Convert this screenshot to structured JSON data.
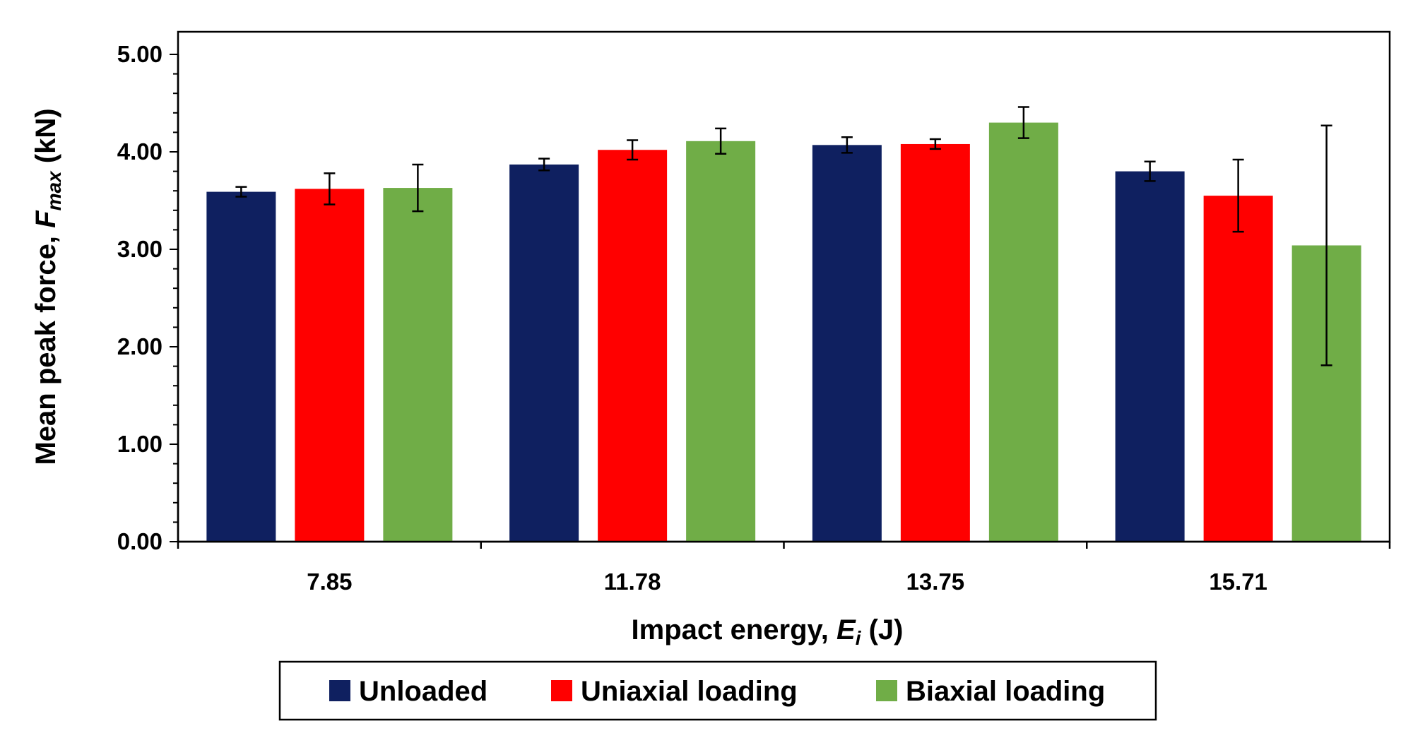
{
  "chart_data": {
    "type": "bar",
    "title": "",
    "xlabel": {
      "prefix": "Impact energy, ",
      "symbol": "E",
      "subscript": "i",
      "suffix": " (J)"
    },
    "ylabel": {
      "prefix": "Mean peak force, ",
      "symbol": "F",
      "subscript": "max",
      "suffix": " (kN)"
    },
    "categories": [
      "7.85",
      "11.78",
      "13.75",
      "15.71"
    ],
    "ylim": [
      0,
      5
    ],
    "yticks": [
      "0.00",
      "1.00",
      "2.00",
      "3.00",
      "4.00",
      "5.00"
    ],
    "grid": false,
    "legend_position": "bottom-center",
    "series": [
      {
        "name": "Unloaded",
        "color": "#0f2060",
        "values": [
          3.59,
          3.87,
          4.07,
          3.8
        ],
        "errors": [
          0.05,
          0.06,
          0.08,
          0.1
        ]
      },
      {
        "name": "Uniaxial loading",
        "color": "#ff0000",
        "values": [
          3.62,
          4.02,
          4.08,
          3.55
        ],
        "errors": [
          0.16,
          0.1,
          0.05,
          0.37
        ]
      },
      {
        "name": "Biaxial loading",
        "color": "#70ad47",
        "values": [
          3.63,
          4.11,
          4.3,
          3.04
        ],
        "errors": [
          0.24,
          0.13,
          0.16,
          1.23
        ]
      }
    ]
  }
}
